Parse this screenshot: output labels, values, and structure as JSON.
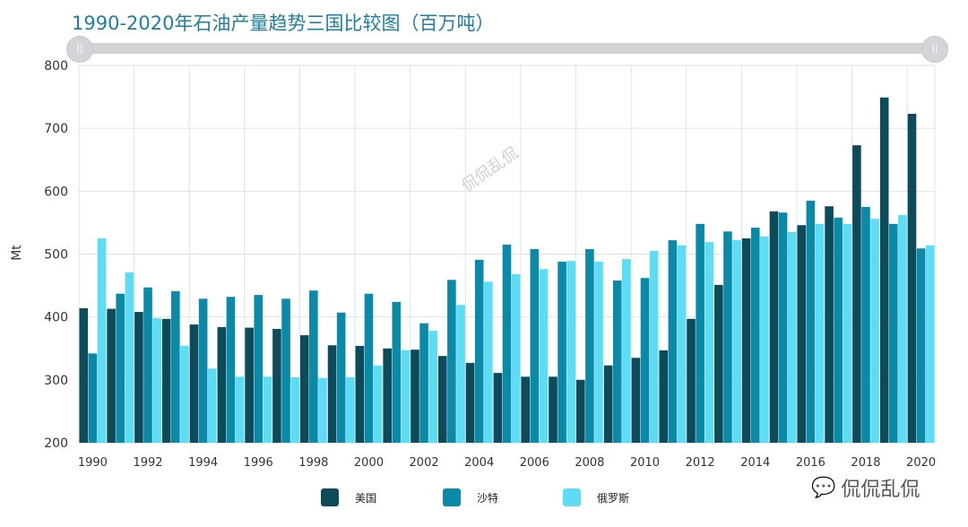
{
  "title": "1990-2020年石油产量趋势三国比较图（百万吨）",
  "watermark": "侃侃乱侃",
  "logo_text": "侃侃乱侃",
  "chart_data": {
    "type": "bar",
    "title": "1990-2020年石油产量趋势三国比较图（百万吨）",
    "ylabel": "Mt",
    "xlabel": "",
    "ylim": [
      200,
      800
    ],
    "yticks": [
      200,
      300,
      400,
      500,
      600,
      700,
      800
    ],
    "xtick_labels": [
      "1990",
      "1992",
      "1994",
      "1996",
      "1998",
      "2000",
      "2002",
      "2004",
      "2006",
      "2008",
      "2010",
      "2012",
      "2014",
      "2016",
      "2018",
      "2020"
    ],
    "categories": [
      1990,
      1991,
      1992,
      1993,
      1994,
      1995,
      1996,
      1997,
      1998,
      1999,
      2000,
      2001,
      2002,
      2003,
      2004,
      2005,
      2006,
      2007,
      2008,
      2009,
      2010,
      2011,
      2012,
      2013,
      2014,
      2015,
      2016,
      2017,
      2018,
      2019,
      2020
    ],
    "grid": true,
    "legend": "bottom",
    "series": [
      {
        "name": "美国",
        "color": "#0d4a5a",
        "values": [
          414,
          413,
          408,
          397,
          388,
          384,
          383,
          381,
          371,
          355,
          354,
          350,
          348,
          338,
          327,
          311,
          305,
          305,
          300,
          323,
          335,
          347,
          397,
          451,
          525,
          568,
          546,
          576,
          673,
          749,
          723
        ]
      },
      {
        "name": "沙特",
        "color": "#0a8aa8",
        "values": [
          342,
          437,
          447,
          441,
          429,
          432,
          435,
          429,
          442,
          407,
          437,
          424,
          390,
          459,
          491,
          515,
          508,
          488,
          508,
          458,
          462,
          522,
          548,
          536,
          542,
          566,
          585,
          558,
          575,
          548,
          509
        ]
      },
      {
        "name": "俄罗斯",
        "color": "#5ddcf5",
        "values": [
          525,
          471,
          398,
          354,
          318,
          305,
          305,
          304,
          303,
          304,
          323,
          347,
          378,
          419,
          456,
          468,
          476,
          489,
          488,
          492,
          505,
          514,
          519,
          522,
          528,
          535,
          548,
          548,
          556,
          562,
          514
        ]
      }
    ]
  }
}
